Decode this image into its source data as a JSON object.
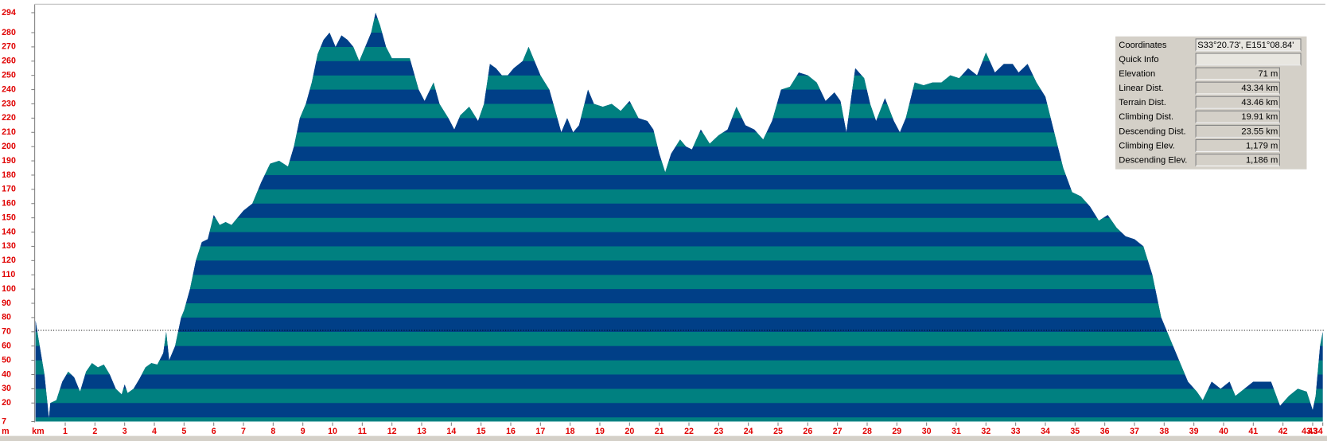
{
  "chart_data": {
    "type": "area",
    "x_label": "km",
    "y_label": "m",
    "xlim": [
      0,
      43.34
    ],
    "ylim": [
      7,
      294
    ],
    "xticks": [
      1,
      2,
      3,
      4,
      5,
      6,
      7,
      8,
      9,
      10,
      11,
      12,
      13,
      14,
      15,
      16,
      17,
      18,
      19,
      20,
      21,
      22,
      23,
      24,
      25,
      26,
      27,
      28,
      29,
      30,
      31,
      32,
      33,
      34,
      35,
      36,
      37,
      38,
      39,
      40,
      41,
      42,
      43,
      43.34
    ],
    "yticks": [
      7,
      20,
      30,
      40,
      50,
      60,
      70,
      80,
      90,
      100,
      110,
      120,
      130,
      140,
      150,
      160,
      170,
      180,
      190,
      200,
      210,
      220,
      230,
      240,
      250,
      260,
      270,
      280,
      294
    ],
    "stripe_step": 10,
    "stripe_colors": [
      "#008080",
      "#003f87"
    ],
    "marker_elevation": 71,
    "x": [
      0,
      0.1,
      0.3,
      0.4,
      0.45,
      0.5,
      0.7,
      0.9,
      1.1,
      1.3,
      1.5,
      1.7,
      1.9,
      2.1,
      2.3,
      2.5,
      2.7,
      2.9,
      3.0,
      3.1,
      3.3,
      3.5,
      3.7,
      3.9,
      4.1,
      4.3,
      4.4,
      4.5,
      4.7,
      4.9,
      5.0,
      5.2,
      5.4,
      5.6,
      5.8,
      6.0,
      6.2,
      6.4,
      6.6,
      6.8,
      7.0,
      7.3,
      7.6,
      7.9,
      8.2,
      8.5,
      8.7,
      8.9,
      9.1,
      9.3,
      9.5,
      9.7,
      9.9,
      10.1,
      10.3,
      10.5,
      10.7,
      10.9,
      11.1,
      11.3,
      11.45,
      11.6,
      11.8,
      12.0,
      12.3,
      12.6,
      12.9,
      13.1,
      13.4,
      13.6,
      13.9,
      14.1,
      14.3,
      14.6,
      14.9,
      15.1,
      15.3,
      15.5,
      15.7,
      15.9,
      16.1,
      16.4,
      16.6,
      16.8,
      17.0,
      17.3,
      17.5,
      17.7,
      17.9,
      18.1,
      18.3,
      18.6,
      18.8,
      19.1,
      19.4,
      19.7,
      20.0,
      20.3,
      20.6,
      20.8,
      21.0,
      21.2,
      21.4,
      21.7,
      21.9,
      22.1,
      22.4,
      22.7,
      23.0,
      23.3,
      23.6,
      23.9,
      24.2,
      24.5,
      24.8,
      25.1,
      25.4,
      25.7,
      26.0,
      26.3,
      26.6,
      26.9,
      27.1,
      27.3,
      27.6,
      27.9,
      28.1,
      28.3,
      28.6,
      28.9,
      29.1,
      29.3,
      29.6,
      29.9,
      30.2,
      30.5,
      30.8,
      31.1,
      31.4,
      31.7,
      32.0,
      32.3,
      32.6,
      32.9,
      33.1,
      33.4,
      33.7,
      34.0,
      34.3,
      34.6,
      34.9,
      35.2,
      35.5,
      35.8,
      36.1,
      36.4,
      36.7,
      37.0,
      37.3,
      37.6,
      37.9,
      38.2,
      38.5,
      38.8,
      39.1,
      39.3,
      39.6,
      39.9,
      40.2,
      40.4,
      40.7,
      41.0,
      41.3,
      41.6,
      41.9,
      42.2,
      42.5,
      42.8,
      43.0,
      43.1,
      43.25,
      43.34
    ],
    "values": [
      78,
      65,
      40,
      20,
      9,
      20,
      22,
      35,
      42,
      38,
      28,
      42,
      48,
      45,
      47,
      40,
      30,
      26,
      33,
      27,
      30,
      37,
      45,
      48,
      47,
      55,
      70,
      50,
      60,
      80,
      85,
      100,
      120,
      133,
      135,
      152,
      145,
      147,
      145,
      150,
      155,
      160,
      175,
      188,
      190,
      186,
      200,
      220,
      230,
      245,
      265,
      275,
      280,
      270,
      278,
      275,
      270,
      260,
      270,
      280,
      294,
      285,
      270,
      262,
      262,
      262,
      240,
      232,
      245,
      230,
      220,
      212,
      222,
      228,
      218,
      230,
      258,
      255,
      250,
      250,
      255,
      260,
      270,
      260,
      250,
      240,
      225,
      210,
      220,
      210,
      215,
      240,
      230,
      228,
      230,
      225,
      232,
      220,
      218,
      212,
      195,
      182,
      195,
      205,
      200,
      198,
      212,
      202,
      208,
      212,
      228,
      215,
      212,
      205,
      218,
      240,
      242,
      252,
      250,
      245,
      232,
      238,
      232,
      210,
      255,
      248,
      230,
      218,
      234,
      218,
      210,
      220,
      245,
      243,
      245,
      245,
      250,
      248,
      255,
      250,
      266,
      252,
      258,
      258,
      252,
      258,
      245,
      235,
      210,
      185,
      168,
      165,
      158,
      148,
      152,
      143,
      137,
      135,
      130,
      110,
      80,
      65,
      50,
      35,
      28,
      22,
      35,
      30,
      35,
      25,
      30,
      35,
      35,
      35,
      18,
      25,
      30,
      28,
      15,
      25,
      60,
      70
    ]
  },
  "info_panel": {
    "rows": [
      {
        "label": "Coordinates",
        "value": "S33°20.73', E151°08.84'"
      },
      {
        "label": "Quick Info"
      },
      {
        "label": "Elevation",
        "value": "71 m"
      },
      {
        "label": "Linear Dist.",
        "value": "43.34 km"
      },
      {
        "label": "Terrain Dist.",
        "value": "43.46 km"
      },
      {
        "label": "Climbing Dist.",
        "value": "19.91 km"
      },
      {
        "label": "Descending Dist.",
        "value": "23.55 km"
      },
      {
        "label": "Climbing Elev.",
        "value": "1,179 m"
      },
      {
        "label": "Descending Elev.",
        "value": "1,186 m"
      }
    ]
  }
}
